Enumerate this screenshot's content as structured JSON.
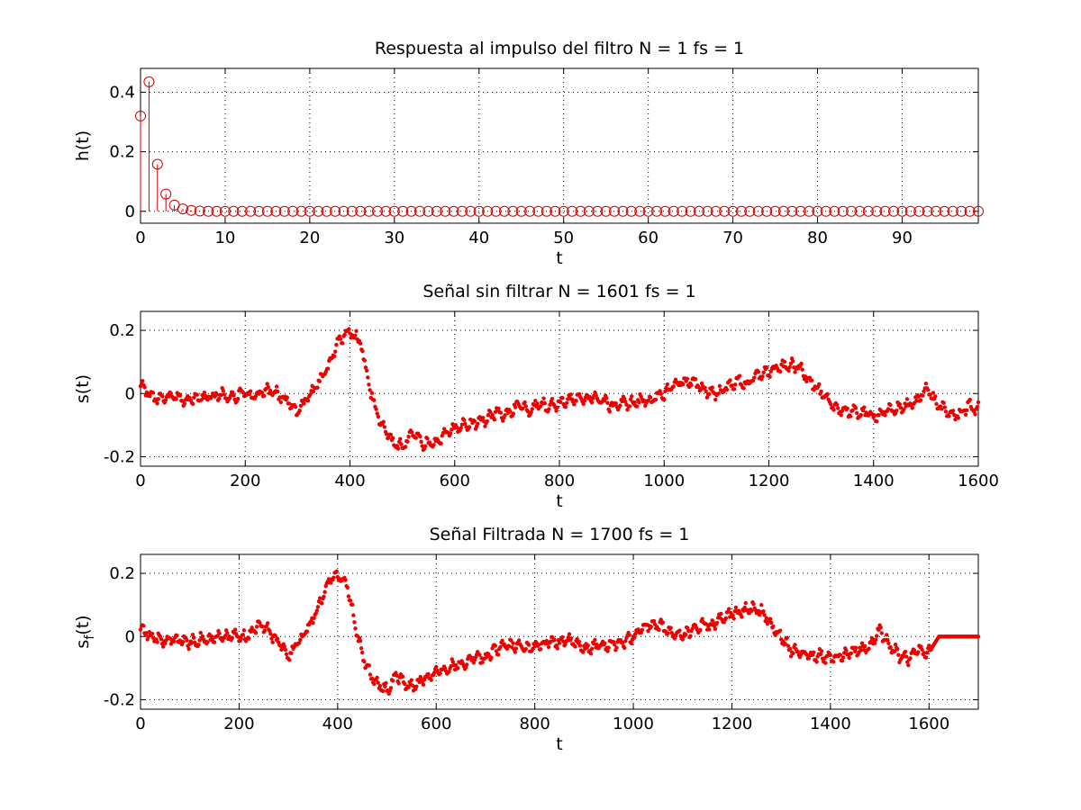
{
  "colors": {
    "series": "#ee0000",
    "stem": "#d00000",
    "axes": "#000000",
    "background": "#ffffff"
  },
  "chart_data": [
    {
      "type": "stem",
      "title": "Respuesta al impulso del filtro N = 1 fs = 1",
      "xlabel": "t",
      "ylabel": "h(t)",
      "xlim": [
        0,
        99
      ],
      "ylim": [
        -0.04,
        0.48
      ],
      "xticks": [
        0,
        10,
        20,
        30,
        40,
        50,
        60,
        70,
        80,
        90
      ],
      "yticks": [
        0,
        0.2,
        0.4
      ],
      "grid": true,
      "marker": "circle",
      "x_range": [
        0,
        99
      ],
      "values_head": [
        0.32,
        0.435,
        0.158,
        0.058,
        0.021,
        0.008,
        0.003,
        0.001
      ],
      "values_tail": 0
    },
    {
      "type": "scatter",
      "title": "Señal sin filtrar N = 1601 fs = 1",
      "xlabel": "t",
      "ylabel": "s(t)",
      "ylabel_base": "s",
      "ylabel_suffix": "(t)",
      "xlim": [
        0,
        1600
      ],
      "ylim": [
        -0.23,
        0.26
      ],
      "xticks": [
        0,
        200,
        400,
        600,
        800,
        1000,
        1200,
        1400,
        1600
      ],
      "yticks": [
        -0.2,
        0,
        0.2
      ],
      "grid": true,
      "marker": "dot",
      "series": [
        {
          "x": [
            0,
            20,
            40,
            60,
            80,
            100,
            120,
            140,
            160,
            180,
            200,
            220,
            240,
            260,
            280,
            300,
            320,
            340,
            360,
            380,
            400,
            420,
            440,
            460,
            480,
            500,
            520,
            540,
            560,
            580,
            600,
            620,
            640,
            660,
            680,
            700,
            720,
            740,
            760,
            780,
            800,
            820,
            840,
            860,
            880,
            900,
            920,
            940,
            960,
            980,
            1000,
            1020,
            1040,
            1060,
            1080,
            1100,
            1120,
            1140,
            1160,
            1180,
            1200,
            1220,
            1240,
            1260,
            1280,
            1300,
            1320,
            1340,
            1360,
            1380,
            1400,
            1420,
            1440,
            1460,
            1480,
            1500,
            1520,
            1540,
            1560,
            1580,
            1600
          ],
          "y": [
            0.03,
            -0.01,
            -0.02,
            -0.01,
            -0.02,
            -0.02,
            -0.01,
            -0.01,
            0.0,
            -0.01,
            0.0,
            -0.01,
            0.01,
            0.0,
            -0.02,
            -0.06,
            -0.01,
            0.03,
            0.09,
            0.17,
            0.2,
            0.16,
            0.0,
            -0.1,
            -0.15,
            -0.17,
            -0.12,
            -0.16,
            -0.16,
            -0.13,
            -0.11,
            -0.1,
            -0.09,
            -0.08,
            -0.06,
            -0.07,
            -0.04,
            -0.05,
            -0.03,
            -0.04,
            -0.03,
            -0.02,
            -0.02,
            -0.01,
            -0.02,
            -0.04,
            -0.03,
            -0.03,
            -0.02,
            -0.02,
            0.0,
            0.03,
            0.04,
            0.03,
            0.01,
            0.0,
            0.02,
            0.04,
            0.03,
            0.06,
            0.07,
            0.08,
            0.09,
            0.08,
            0.04,
            0.0,
            -0.04,
            -0.05,
            -0.06,
            -0.06,
            -0.07,
            -0.06,
            -0.05,
            -0.04,
            -0.03,
            0.02,
            -0.03,
            -0.06,
            -0.07,
            -0.04,
            -0.05
          ]
        }
      ]
    },
    {
      "type": "scatter",
      "title": "Señal Filtrada N = 1700 fs = 1",
      "xlabel": "t",
      "ylabel": "sf(t)",
      "ylabel_base": "s",
      "ylabel_sub": "f",
      "ylabel_suffix": "(t)",
      "xlim": [
        0,
        1700
      ],
      "ylim": [
        -0.23,
        0.26
      ],
      "xticks": [
        0,
        200,
        400,
        600,
        800,
        1000,
        1200,
        1400,
        1600
      ],
      "yticks": [
        -0.2,
        0,
        0.2
      ],
      "grid": true,
      "marker": "dot",
      "series": [
        {
          "x": [
            0,
            20,
            40,
            60,
            80,
            100,
            120,
            140,
            160,
            180,
            200,
            220,
            240,
            260,
            280,
            300,
            320,
            340,
            360,
            380,
            400,
            420,
            440,
            460,
            480,
            500,
            520,
            540,
            560,
            580,
            600,
            620,
            640,
            660,
            680,
            700,
            720,
            740,
            760,
            780,
            800,
            820,
            840,
            860,
            880,
            900,
            920,
            940,
            960,
            980,
            1000,
            1020,
            1040,
            1060,
            1080,
            1100,
            1120,
            1140,
            1160,
            1180,
            1200,
            1220,
            1240,
            1260,
            1280,
            1300,
            1320,
            1340,
            1360,
            1380,
            1400,
            1420,
            1440,
            1460,
            1480,
            1500,
            1520,
            1540,
            1560,
            1580,
            1600,
            1620,
            1640,
            1660,
            1680,
            1700
          ],
          "y": [
            0.03,
            0.0,
            -0.01,
            -0.01,
            -0.01,
            -0.02,
            -0.01,
            -0.01,
            0.0,
            0.0,
            0.0,
            0.0,
            0.04,
            0.02,
            -0.02,
            -0.06,
            -0.02,
            0.03,
            0.09,
            0.17,
            0.2,
            0.16,
            0.0,
            -0.1,
            -0.15,
            -0.17,
            -0.12,
            -0.16,
            -0.15,
            -0.13,
            -0.11,
            -0.1,
            -0.09,
            -0.08,
            -0.06,
            -0.07,
            -0.04,
            -0.03,
            -0.03,
            -0.04,
            -0.03,
            -0.02,
            -0.02,
            -0.01,
            -0.02,
            -0.04,
            -0.03,
            -0.03,
            -0.02,
            -0.02,
            0.0,
            0.03,
            0.04,
            0.03,
            0.01,
            0.0,
            0.02,
            0.04,
            0.03,
            0.06,
            0.07,
            0.08,
            0.09,
            0.08,
            0.04,
            0.0,
            -0.04,
            -0.05,
            -0.06,
            -0.06,
            -0.07,
            -0.06,
            -0.05,
            -0.04,
            -0.03,
            0.02,
            -0.03,
            -0.06,
            -0.07,
            -0.04,
            -0.05,
            0.0,
            0.0,
            0.0,
            0.0,
            0.0
          ]
        }
      ]
    }
  ]
}
